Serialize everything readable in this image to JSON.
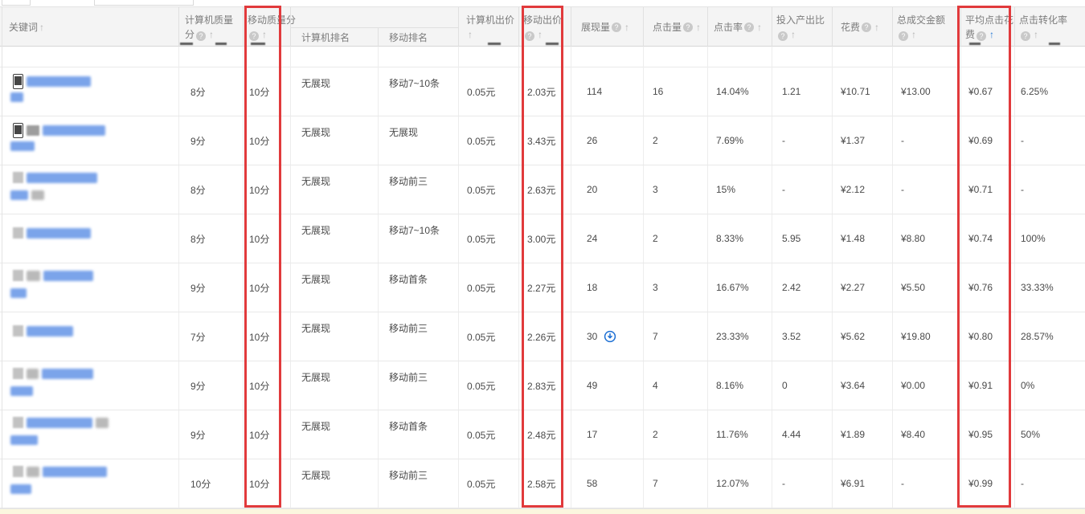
{
  "table": {
    "columns": [
      {
        "key": "keyword",
        "label": "关键词",
        "sort": "gray",
        "layout": "inline"
      },
      {
        "key": "pc_quality",
        "label": "计算机质量",
        "label2": "分",
        "help": true,
        "sort": "gray"
      },
      {
        "key": "mobile_quality",
        "label": "移动质量分",
        "label2": "",
        "help": true,
        "sort": "gray"
      },
      {
        "key": "pc_rank",
        "label": "计算机排名",
        "group": true
      },
      {
        "key": "mobile_rank",
        "label": "移动排名",
        "group": true
      },
      {
        "key": "pc_bid",
        "label": "计算机出价",
        "label2": "",
        "sort": "gray"
      },
      {
        "key": "mobile_bid",
        "label": "移动出价",
        "label2": "",
        "help": true,
        "sort": "gray"
      },
      {
        "key": "impressions",
        "label": "展现量",
        "help": true,
        "sort": "gray",
        "layout": "inline"
      },
      {
        "key": "clicks",
        "label": "点击量",
        "help": true,
        "sort": "gray",
        "layout": "inline"
      },
      {
        "key": "ctr",
        "label": "点击率",
        "help": true,
        "sort": "gray",
        "layout": "inline"
      },
      {
        "key": "roi",
        "label": "投入产出比",
        "label2": "",
        "help": true,
        "sort": "gray"
      },
      {
        "key": "cost",
        "label": "花费",
        "help": true,
        "sort": "gray",
        "layout": "inline"
      },
      {
        "key": "gmv",
        "label": "总成交金额",
        "label2": "",
        "help": true,
        "sort": "gray"
      },
      {
        "key": "cpc",
        "label": "平均点击花",
        "label2": "费",
        "help": true,
        "sort": "blue"
      },
      {
        "key": "cvr",
        "label": "点击转化率",
        "label2": "",
        "help": true,
        "sort": "gray"
      }
    ],
    "rows": [
      {
        "keyword": {
          "icon": "phone",
          "tag": false,
          "line1": [
            [
              "blue",
              80
            ]
          ],
          "line2": [
            [
              "blue",
              16
            ]
          ]
        },
        "pc_quality": "8分",
        "mobile_quality": "10分",
        "pc_rank": "无展现",
        "mobile_rank": "移动7~10条",
        "pc_bid": "0.05元",
        "mobile_bid": "2.03元",
        "impressions": "114",
        "imp_icon": false,
        "clicks": "16",
        "ctr": "14.04%",
        "roi": "1.21",
        "cost": "¥10.71",
        "gmv": "¥13.00",
        "cpc": "¥0.67",
        "cvr": "6.25%"
      },
      {
        "keyword": {
          "icon": "phone",
          "tag": true,
          "line1": [
            [
              "blue",
              78
            ]
          ],
          "line2": [
            [
              "blue",
              30
            ]
          ]
        },
        "pc_quality": "9分",
        "mobile_quality": "10分",
        "pc_rank": "无展现",
        "mobile_rank": "无展现",
        "pc_bid": "0.05元",
        "mobile_bid": "3.43元",
        "impressions": "26",
        "imp_icon": false,
        "clicks": "2",
        "ctr": "7.69%",
        "roi": "-",
        "cost": "¥1.37",
        "gmv": "-",
        "cpc": "¥0.69",
        "cvr": "-"
      },
      {
        "keyword": {
          "icon": "blur",
          "tag": false,
          "line1": [
            [
              "blue",
              88
            ]
          ],
          "line2": [
            [
              "blue",
              22
            ],
            [
              "gray",
              16
            ]
          ]
        },
        "pc_quality": "8分",
        "mobile_quality": "10分",
        "pc_rank": "无展现",
        "mobile_rank": "移动前三",
        "pc_bid": "0.05元",
        "mobile_bid": "2.63元",
        "impressions": "20",
        "imp_icon": false,
        "clicks": "3",
        "ctr": "15%",
        "roi": "-",
        "cost": "¥2.12",
        "gmv": "-",
        "cpc": "¥0.71",
        "cvr": "-"
      },
      {
        "keyword": {
          "icon": "blur",
          "tag": false,
          "line1": [
            [
              "blue",
              80
            ]
          ],
          "line2": []
        },
        "pc_quality": "8分",
        "mobile_quality": "10分",
        "pc_rank": "无展现",
        "mobile_rank": "移动7~10条",
        "pc_bid": "0.05元",
        "mobile_bid": "3.00元",
        "impressions": "24",
        "imp_icon": false,
        "clicks": "2",
        "ctr": "8.33%",
        "roi": "5.95",
        "cost": "¥1.48",
        "gmv": "¥8.80",
        "cpc": "¥0.74",
        "cvr": "100%"
      },
      {
        "keyword": {
          "icon": "blur",
          "tag": false,
          "line1": [
            [
              "gray",
              17
            ],
            [
              "blue",
              62
            ]
          ],
          "line2": [
            [
              "blue",
              20
            ]
          ]
        },
        "pc_quality": "9分",
        "mobile_quality": "10分",
        "pc_rank": "无展现",
        "mobile_rank": "移动首条",
        "pc_bid": "0.05元",
        "mobile_bid": "2.27元",
        "impressions": "18",
        "imp_icon": false,
        "clicks": "3",
        "ctr": "16.67%",
        "roi": "2.42",
        "cost": "¥2.27",
        "gmv": "¥5.50",
        "cpc": "¥0.76",
        "cvr": "33.33%"
      },
      {
        "keyword": {
          "icon": "blur",
          "tag": false,
          "line1": [
            [
              "blue",
              58
            ]
          ],
          "line2": []
        },
        "pc_quality": "7分",
        "mobile_quality": "10分",
        "pc_rank": "无展现",
        "mobile_rank": "移动前三",
        "pc_bid": "0.05元",
        "mobile_bid": "2.26元",
        "impressions": "30",
        "imp_icon": true,
        "clicks": "7",
        "ctr": "23.33%",
        "roi": "3.52",
        "cost": "¥5.62",
        "gmv": "¥19.80",
        "cpc": "¥0.80",
        "cvr": "28.57%"
      },
      {
        "keyword": {
          "icon": "blur",
          "tag": false,
          "line1": [
            [
              "gray",
              15
            ],
            [
              "blue",
              64
            ]
          ],
          "line2": [
            [
              "blue",
              28
            ]
          ]
        },
        "pc_quality": "9分",
        "mobile_quality": "10分",
        "pc_rank": "无展现",
        "mobile_rank": "移动前三",
        "pc_bid": "0.05元",
        "mobile_bid": "2.83元",
        "impressions": "49",
        "imp_icon": false,
        "clicks": "4",
        "ctr": "8.16%",
        "roi": "0",
        "cost": "¥3.64",
        "gmv": "¥0.00",
        "cpc": "¥0.91",
        "cvr": "0%"
      },
      {
        "keyword": {
          "icon": "blur",
          "tag": false,
          "line1": [
            [
              "blue",
              82
            ],
            [
              "gray",
              16
            ]
          ],
          "line2": [
            [
              "blue",
              34
            ]
          ]
        },
        "pc_quality": "9分",
        "mobile_quality": "10分",
        "pc_rank": "无展现",
        "mobile_rank": "移动首条",
        "pc_bid": "0.05元",
        "mobile_bid": "2.48元",
        "impressions": "17",
        "imp_icon": false,
        "clicks": "2",
        "ctr": "11.76%",
        "roi": "4.44",
        "cost": "¥1.89",
        "gmv": "¥8.40",
        "cpc": "¥0.95",
        "cvr": "50%"
      },
      {
        "keyword": {
          "icon": "blur",
          "tag": false,
          "line1": [
            [
              "gray",
              16
            ],
            [
              "blue",
              80
            ]
          ],
          "line2": [
            [
              "blue",
              26
            ]
          ]
        },
        "pc_quality": "10分",
        "mobile_quality": "10分",
        "pc_rank": "无展现",
        "mobile_rank": "移动前三",
        "pc_bid": "0.05元",
        "mobile_bid": "2.58元",
        "impressions": "58",
        "imp_icon": false,
        "clicks": "7",
        "ctr": "12.07%",
        "roi": "-",
        "cost": "¥6.91",
        "gmv": "-",
        "cpc": "¥0.99",
        "cvr": "-"
      }
    ],
    "partial_row_fragments": [
      "pc_quality",
      "pc_quality",
      "mobile_quality",
      "pc_bid",
      "mobile_bid",
      "cpc",
      "cvr"
    ],
    "highlight_boxes": [
      {
        "column": "mobile_quality"
      },
      {
        "column": "mobile_bid"
      },
      {
        "column": "cpc"
      }
    ]
  },
  "colors": {
    "highlight_red": "#e13a3c",
    "sort_active_blue": "#2779d6",
    "header_bg": "#f4f4f4",
    "footer_yellow": "#fbf7df",
    "keyword_blur_blue": "#7ba4ea"
  },
  "icons": {
    "sort": "sort-up-icon",
    "help": "help-icon",
    "phone": "phone-icon",
    "redacted": "blurred-keyword-icon",
    "impressions_drop": "down-arrow-circle-icon"
  }
}
